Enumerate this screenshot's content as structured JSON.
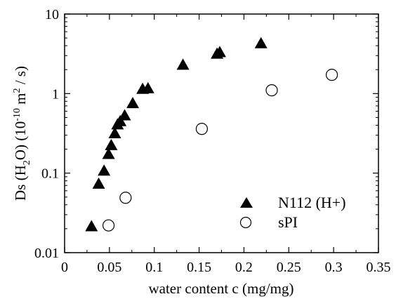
{
  "chart_data": {
    "type": "scatter",
    "xlabel": "water content c (mg/mg)",
    "ylabel": {
      "prefix": "Ds (H",
      "sub": "2",
      "mid": "O) (10",
      "sup1": "-10",
      "unit": " m",
      "sup2": "2",
      "suffix": " / s)"
    },
    "xlim": [
      0,
      0.35
    ],
    "ylim": [
      0.01,
      10
    ],
    "yscale": "log",
    "x_ticks": [
      0,
      0.05,
      0.1,
      0.15,
      0.2,
      0.25,
      0.3,
      0.35
    ],
    "x_tick_labels": [
      "0",
      "0.05",
      "0.1",
      "0.15",
      "0.2",
      "0.25",
      "0.3",
      "0.35"
    ],
    "y_ticks": [
      0.01,
      0.1,
      1,
      10
    ],
    "y_tick_labels": [
      "0.01",
      "0.1",
      "1",
      "10"
    ],
    "legend_position": "bottom-right",
    "series": [
      {
        "name": "N112 (H+)",
        "marker": "filled-triangle",
        "color": "#000000",
        "x": [
          0.03,
          0.038,
          0.044,
          0.049,
          0.052,
          0.056,
          0.059,
          0.062,
          0.067,
          0.076,
          0.087,
          0.093,
          0.132,
          0.17,
          0.173,
          0.219
        ],
        "y": [
          0.021,
          0.072,
          0.105,
          0.17,
          0.22,
          0.31,
          0.4,
          0.44,
          0.52,
          0.74,
          1.12,
          1.14,
          2.25,
          3.1,
          3.25,
          4.2
        ]
      },
      {
        "name": "sPI",
        "marker": "open-circle",
        "color": "#000000",
        "x": [
          0.049,
          0.068,
          0.153,
          0.231,
          0.298
        ],
        "y": [
          0.022,
          0.049,
          0.36,
          1.1,
          1.72
        ]
      }
    ]
  }
}
